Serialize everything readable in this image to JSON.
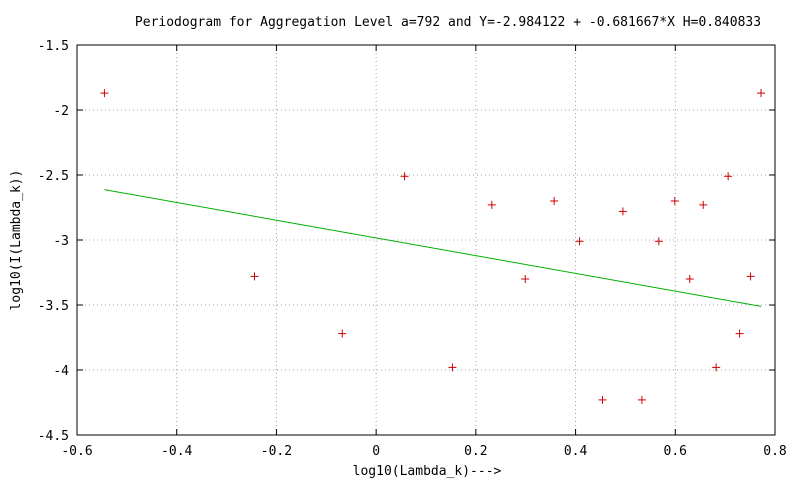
{
  "chart_data": {
    "type": "scatter",
    "title": "Periodogram for Aggregation Level a=792 and Y=-2.984122 + -0.681667*X H=0.840833",
    "xlabel": "log10(Lambda_k)--->",
    "ylabel": "log10(I(Lambda_k))",
    "xlim": [
      -0.6,
      0.8
    ],
    "ylim": [
      -4.5,
      -1.5
    ],
    "x_ticks": [
      "-0.6",
      "-0.4",
      "-0.2",
      "0",
      "0.2",
      "0.4",
      "0.6",
      "0.8"
    ],
    "y_ticks": [
      "-1.5",
      "-2",
      "-2.5",
      "-3",
      "-3.5",
      "-4",
      "-4.5"
    ],
    "grid": true,
    "legend": "none",
    "colors": {
      "points": "#d00000",
      "fit": "#00b000",
      "grid": "#a0a0a0"
    },
    "points": [
      {
        "x": -0.545,
        "y": -1.87
      },
      {
        "x": -0.244,
        "y": -3.28
      },
      {
        "x": -0.068,
        "y": -3.72
      },
      {
        "x": 0.057,
        "y": -2.51
      },
      {
        "x": 0.153,
        "y": -3.98
      },
      {
        "x": 0.232,
        "y": -2.73
      },
      {
        "x": 0.299,
        "y": -3.3
      },
      {
        "x": 0.357,
        "y": -2.7
      },
      {
        "x": 0.408,
        "y": -3.01
      },
      {
        "x": 0.454,
        "y": -4.23
      },
      {
        "x": 0.495,
        "y": -2.78
      },
      {
        "x": 0.533,
        "y": -4.23
      },
      {
        "x": 0.567,
        "y": -3.01
      },
      {
        "x": 0.599,
        "y": -2.7
      },
      {
        "x": 0.629,
        "y": -3.3
      },
      {
        "x": 0.656,
        "y": -2.73
      },
      {
        "x": 0.682,
        "y": -3.98
      },
      {
        "x": 0.706,
        "y": -2.51
      },
      {
        "x": 0.729,
        "y": -3.72
      },
      {
        "x": 0.751,
        "y": -3.28
      },
      {
        "x": 0.772,
        "y": -1.87
      }
    ],
    "fit_line": {
      "intercept": -2.984122,
      "slope": -0.681667,
      "x_range": [
        -0.545,
        0.772
      ]
    }
  }
}
